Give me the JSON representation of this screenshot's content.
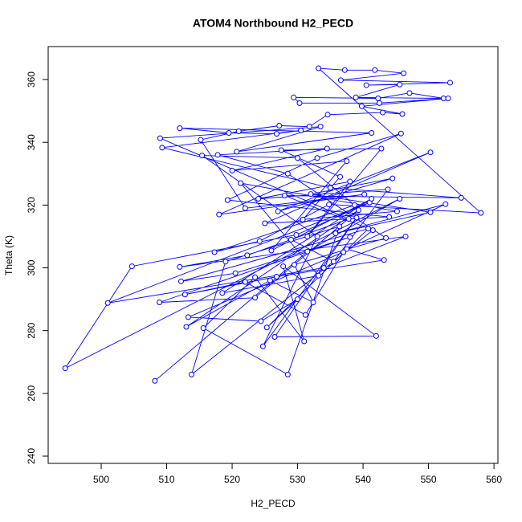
{
  "chart_data": {
    "type": "scatter",
    "title": "ATOM4 Northbound H2_PECD",
    "x_label": "H2_PECD",
    "y_label": "Theta (K)",
    "color": "#0000ff",
    "connect": true,
    "xlim": [
      491.9,
      560.6
    ],
    "ylim": [
      237.7,
      370.5
    ],
    "xticks": [
      500,
      510,
      520,
      530,
      540,
      550,
      560
    ],
    "yticks": [
      240,
      260,
      280,
      300,
      320,
      340,
      360
    ],
    "x": [
      508.2,
      531.5,
      545.6,
      494.5,
      504.7,
      529.8,
      541.0,
      501.0,
      534.0,
      546.5,
      512.0,
      522.3,
      537.8,
      509.0,
      533.5,
      520.7,
      541.3,
      512.0,
      519.5,
      526.8,
      530.5,
      509.3,
      535.0,
      555.0,
      528.0,
      541.5,
      513.8,
      519.0,
      536.4,
      528.5,
      515.6,
      523.5,
      531.0,
      527.8,
      542.0,
      526.5,
      539.0,
      524.7,
      533.0,
      515.4,
      530.0,
      538.7,
      517.3,
      524.2,
      534.8,
      558.0,
      533.2,
      537.2,
      541.8,
      546.2,
      536.6,
      553.3,
      540.5,
      545.6,
      538.9,
      552.3,
      547.1,
      542.3,
      529.4,
      530.3,
      542.5,
      553.0,
      539.8,
      546.0,
      543.0,
      534.6,
      531.8,
      527.2,
      521.0,
      515.2,
      522.0,
      540.2,
      518.0,
      545.8,
      533.0,
      519.3,
      544.0,
      525.0,
      550.3,
      527.0,
      544.5,
      532.0,
      550.3,
      535.8,
      552.6,
      537.5,
      543.2,
      526.8,
      512.8,
      522.0,
      531.2,
      537.0,
      513.3,
      524.4,
      530.0,
      525.3,
      540.8,
      512.2,
      520.5,
      538.0,
      508.9,
      523.5,
      539.3,
      513.0,
      525.8,
      532.4,
      529.5,
      543.5,
      528.5,
      517.8,
      534.5,
      520.0,
      537.5,
      526.0,
      541.3,
      518.5,
      533.2,
      521.3,
      545.2,
      530.8,
      536.5,
      527.5,
      542.8,
      531.5,
      538.0,
      524.0,
      543.8,
      535.5,
      529.0
    ],
    "y": [
      264.0,
      305.2,
      322.0,
      268.0,
      300.5,
      310.5,
      320.8,
      288.8,
      300.0,
      310.0,
      300.3,
      304.0,
      315.6,
      341.3,
      345.0,
      337.0,
      343.0,
      344.5,
      343.0,
      342.7,
      343.8,
      338.3,
      325.5,
      322.3,
      323.0,
      312.0,
      266.0,
      302.0,
      313.2,
      266.0,
      280.8,
      297.0,
      276.6,
      300.5,
      278.3,
      278.0,
      316.0,
      275.0,
      310.0,
      335.8,
      335.0,
      320.0,
      305.0,
      308.5,
      320.2,
      317.5,
      363.6,
      363.0,
      363.0,
      362.0,
      359.8,
      359.0,
      358.2,
      358.4,
      354.3,
      354.0,
      355.7,
      354.0,
      354.3,
      352.5,
      352.5,
      354.0,
      351.5,
      349.0,
      349.5,
      348.8,
      345.0,
      345.3,
      343.5,
      340.8,
      319.0,
      323.4,
      317.0,
      342.8,
      335.0,
      321.6,
      316.2,
      314.2,
      336.8,
      318.0,
      328.5,
      323.5,
      317.7,
      311.0,
      320.3,
      306.0,
      302.5,
      297.2,
      291.5,
      295.5,
      285.0,
      305.0,
      284.3,
      283.0,
      290.0,
      281.0,
      312.5,
      295.7,
      298.3,
      309.8,
      289.0,
      290.5,
      318.4,
      281.2,
      296.0,
      289.0,
      301.0,
      309.5,
      330.0,
      336.0,
      338.0,
      331.0,
      334.0,
      305.5,
      322.0,
      292.0,
      297.5,
      327.0,
      318.0,
      315.4,
      329.0,
      337.5,
      338.0,
      310.0,
      327.5,
      322.0,
      325.0,
      302.0,
      309.0
    ]
  }
}
